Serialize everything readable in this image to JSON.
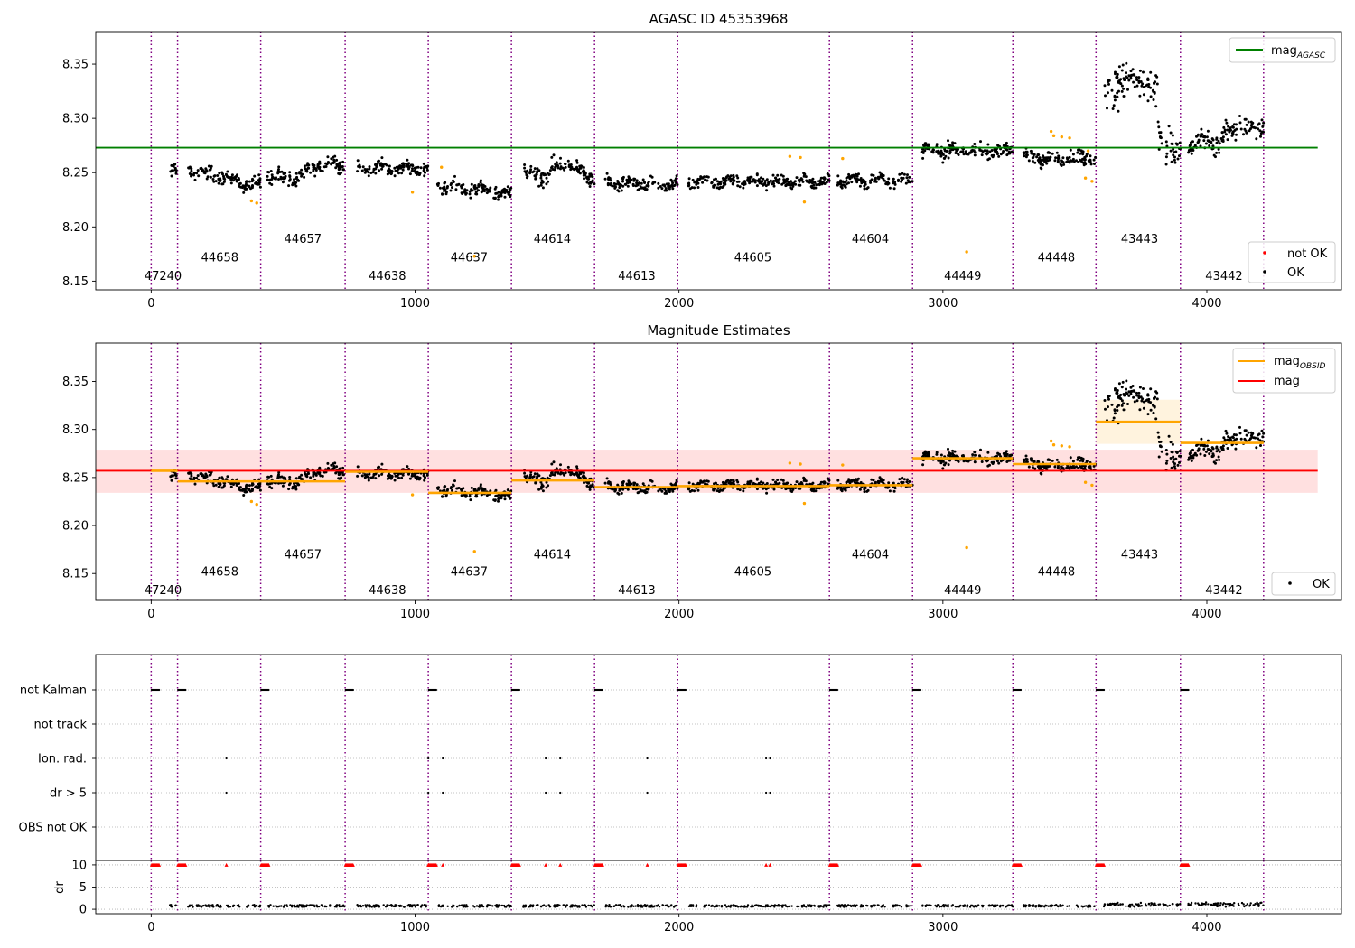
{
  "chart_data": [
    {
      "type": "scatter",
      "title": "AGASC ID 45353968",
      "xlim": [
        -210,
        4510
      ],
      "ylim": [
        8.142,
        8.38
      ],
      "xticks": [
        0,
        1000,
        2000,
        3000,
        4000
      ],
      "yticks": [
        8.15,
        8.2,
        8.25,
        8.3,
        8.35
      ],
      "mag_agasc": 8.273,
      "mag_agasc_range": [
        -210,
        4420
      ],
      "legend_upper": [
        {
          "label": "mag",
          "sub": "AGASC",
          "color": "#008000"
        }
      ],
      "legend_lower": [
        {
          "label": "not OK",
          "color": "#ff0000"
        },
        {
          "label": "OK",
          "color": "#000000"
        }
      ],
      "obs_labels": [
        {
          "label": "47240",
          "x": 45,
          "y": 8.155
        },
        {
          "label": "44658",
          "x": 260,
          "y": 8.172
        },
        {
          "label": "44657",
          "x": 575,
          "y": 8.189
        },
        {
          "label": "44638",
          "x": 895,
          "y": 8.155
        },
        {
          "label": "44637",
          "x": 1205,
          "y": 8.172
        },
        {
          "label": "44614",
          "x": 1520,
          "y": 8.189
        },
        {
          "label": "44613",
          "x": 1840,
          "y": 8.155
        },
        {
          "label": "44605",
          "x": 2280,
          "y": 8.172
        },
        {
          "label": "44604",
          "x": 2725,
          "y": 8.189
        },
        {
          "label": "44449",
          "x": 3075,
          "y": 8.155
        },
        {
          "label": "44448",
          "x": 3430,
          "y": 8.172
        },
        {
          "label": "43443",
          "x": 3745,
          "y": 8.189
        },
        {
          "label": "43442",
          "x": 4065,
          "y": 8.155
        }
      ],
      "outliers": [
        [
          380,
          8.224
        ],
        [
          400,
          8.222
        ],
        [
          990,
          8.232
        ],
        [
          1100,
          8.255
        ],
        [
          1225,
          8.173
        ],
        [
          2420,
          8.265
        ],
        [
          2460,
          8.264
        ],
        [
          2475,
          8.223
        ],
        [
          2620,
          8.263
        ],
        [
          3090,
          8.177
        ],
        [
          3410,
          8.288
        ],
        [
          3420,
          8.284
        ],
        [
          3450,
          8.283
        ],
        [
          3480,
          8.282
        ],
        [
          3540,
          8.245
        ],
        [
          3565,
          8.242
        ],
        [
          3550,
          8.27
        ]
      ]
    },
    {
      "type": "scatter",
      "title": "Magnitude Estimates",
      "xlim": [
        -210,
        4510
      ],
      "ylim": [
        8.122,
        8.39
      ],
      "xticks": [
        0,
        1000,
        2000,
        3000,
        4000
      ],
      "yticks": [
        8.15,
        8.2,
        8.25,
        8.3,
        8.35
      ],
      "mag": 8.257,
      "mag_band": [
        8.234,
        8.279
      ],
      "mag_range": [
        -210,
        4420
      ],
      "legend_upper": [
        {
          "label": "mag",
          "sub": "OBSID",
          "color": "#ffa500"
        },
        {
          "label": "mag",
          "sub": "",
          "color": "#ff0000"
        }
      ],
      "legend_lower": [
        {
          "label": "OK",
          "color": "#000000"
        }
      ],
      "obsid_mags": [
        {
          "x0": 0,
          "x1": 100,
          "y": 8.257
        },
        {
          "x0": 100,
          "x1": 415,
          "y": 8.246
        },
        {
          "x0": 415,
          "x1": 735,
          "y": 8.246
        },
        {
          "x0": 735,
          "x1": 1050,
          "y": 8.256
        },
        {
          "x0": 1050,
          "x1": 1365,
          "y": 8.234
        },
        {
          "x0": 1365,
          "x1": 1680,
          "y": 8.247
        },
        {
          "x0": 1680,
          "x1": 1995,
          "y": 8.24
        },
        {
          "x0": 1995,
          "x1": 2570,
          "y": 8.241
        },
        {
          "x0": 2570,
          "x1": 2885,
          "y": 8.242
        },
        {
          "x0": 2885,
          "x1": 3265,
          "y": 8.27
        },
        {
          "x0": 3265,
          "x1": 3580,
          "y": 8.264
        },
        {
          "x0": 3580,
          "x1": 3900,
          "y": 8.308
        },
        {
          "x0": 3900,
          "x1": 4215,
          "y": 8.286
        }
      ],
      "obsid_bands": [
        {
          "x0": 3580,
          "x1": 3900,
          "y0": 8.285,
          "y1": 8.331
        }
      ],
      "obs_labels": [
        {
          "label": "47240",
          "x": 45,
          "y": 8.133
        },
        {
          "label": "44658",
          "x": 260,
          "y": 8.152
        },
        {
          "label": "44657",
          "x": 575,
          "y": 8.17
        },
        {
          "label": "44638",
          "x": 895,
          "y": 8.133
        },
        {
          "label": "44637",
          "x": 1205,
          "y": 8.152
        },
        {
          "label": "44614",
          "x": 1520,
          "y": 8.17
        },
        {
          "label": "44613",
          "x": 1840,
          "y": 8.133
        },
        {
          "label": "44605",
          "x": 2280,
          "y": 8.152
        },
        {
          "label": "44604",
          "x": 2725,
          "y": 8.17
        },
        {
          "label": "44449",
          "x": 3075,
          "y": 8.133
        },
        {
          "label": "44448",
          "x": 3430,
          "y": 8.152
        },
        {
          "label": "43443",
          "x": 3745,
          "y": 8.17
        },
        {
          "label": "43442",
          "x": 4065,
          "y": 8.133
        }
      ],
      "outliers": [
        [
          380,
          8.225
        ],
        [
          400,
          8.222
        ],
        [
          990,
          8.232
        ],
        [
          1225,
          8.173
        ],
        [
          2420,
          8.265
        ],
        [
          2460,
          8.264
        ],
        [
          2475,
          8.223
        ],
        [
          2620,
          8.263
        ],
        [
          3090,
          8.177
        ],
        [
          3410,
          8.288
        ],
        [
          3420,
          8.284
        ],
        [
          3450,
          8.283
        ],
        [
          3480,
          8.282
        ],
        [
          3540,
          8.245
        ],
        [
          3565,
          8.242
        ]
      ]
    },
    {
      "type": "scatter",
      "title": "",
      "xlim": [
        -210,
        4510
      ],
      "xticks": [
        0,
        1000,
        2000,
        3000,
        4000
      ],
      "flag_rows": [
        "not Kalman",
        "not track",
        "Ion. rad.",
        "dr > 5",
        "OBS not OK"
      ],
      "not_kalman_x": [
        0,
        100,
        415,
        735,
        1050,
        1365,
        1680,
        1995,
        2570,
        2885,
        3265,
        3580,
        3900
      ],
      "ion_rad_x": [
        285,
        1050,
        1105,
        1495,
        1550,
        1880,
        2330,
        2345
      ],
      "dr5_x": [
        285,
        1050,
        1105,
        1495,
        1550,
        1880,
        2330,
        2345
      ],
      "dr_label": "dr",
      "dr_ylim": [
        -1,
        11
      ],
      "dr_yticks": [
        0,
        5,
        10
      ]
    }
  ],
  "obs_boundaries": [
    0,
    100,
    415,
    735,
    1050,
    1365,
    1680,
    1995,
    2570,
    2885,
    3265,
    3580,
    3900,
    4215
  ],
  "segments": [
    {
      "x0": 70,
      "x1": 100,
      "base": 8.255,
      "amp": 0.008
    },
    {
      "x0": 140,
      "x1": 415,
      "base": 8.246,
      "amp": 0.007
    },
    {
      "x0": 440,
      "x1": 735,
      "base": 8.248,
      "amp": 0.008
    },
    {
      "x0": 780,
      "x1": 1050,
      "base": 8.254,
      "amp": 0.006
    },
    {
      "x0": 1085,
      "x1": 1365,
      "base": 8.234,
      "amp": 0.007
    },
    {
      "x0": 1410,
      "x1": 1680,
      "base": 8.248,
      "amp": 0.009
    },
    {
      "x0": 1720,
      "x1": 1995,
      "base": 8.24,
      "amp": 0.006
    },
    {
      "x0": 2035,
      "x1": 2570,
      "base": 8.242,
      "amp": 0.006
    },
    {
      "x0": 2600,
      "x1": 2885,
      "base": 8.243,
      "amp": 0.006
    },
    {
      "x0": 2920,
      "x1": 3265,
      "base": 8.27,
      "amp": 0.007
    },
    {
      "x0": 3300,
      "x1": 3580,
      "base": 8.264,
      "amp": 0.007
    },
    {
      "x0": 3610,
      "x1": 3900,
      "base": 8.315,
      "amp": 0.02
    },
    {
      "x0": 3930,
      "x1": 4215,
      "base": 8.284,
      "amp": 0.01
    }
  ]
}
